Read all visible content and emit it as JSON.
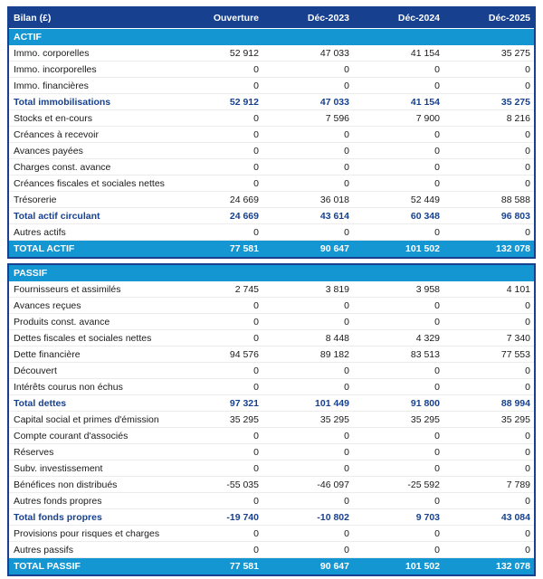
{
  "colors": {
    "navy": "#17418e",
    "section_blue": "#1496d2",
    "row_text": "#1a1a1a",
    "header_text": "#ffffff"
  },
  "table": {
    "title": "Bilan (£)",
    "columns": [
      "Ouverture",
      "Déc-2023",
      "Déc-2024",
      "Déc-2025"
    ],
    "sections": [
      {
        "name": "ACTIF",
        "rows": [
          {
            "label": "Immo. corporelles",
            "values": [
              "52 912",
              "47 033",
              "41 154",
              "35 275"
            ],
            "style": "normal"
          },
          {
            "label": "Immo. incorporelles",
            "values": [
              "0",
              "0",
              "0",
              "0"
            ],
            "style": "normal"
          },
          {
            "label": "Immo. financières",
            "values": [
              "0",
              "0",
              "0",
              "0"
            ],
            "style": "normal"
          },
          {
            "label": "Total immobilisations",
            "values": [
              "52 912",
              "47 033",
              "41 154",
              "35 275"
            ],
            "style": "subtotal"
          },
          {
            "label": "Stocks et en-cours",
            "values": [
              "0",
              "7 596",
              "7 900",
              "8 216"
            ],
            "style": "normal"
          },
          {
            "label": "Créances à recevoir",
            "values": [
              "0",
              "0",
              "0",
              "0"
            ],
            "style": "normal"
          },
          {
            "label": "Avances payées",
            "values": [
              "0",
              "0",
              "0",
              "0"
            ],
            "style": "normal"
          },
          {
            "label": "Charges const. avance",
            "values": [
              "0",
              "0",
              "0",
              "0"
            ],
            "style": "normal"
          },
          {
            "label": "Créances fiscales et sociales nettes",
            "values": [
              "0",
              "0",
              "0",
              "0"
            ],
            "style": "normal"
          },
          {
            "label": "Trésorerie",
            "values": [
              "24 669",
              "36 018",
              "52 449",
              "88 588"
            ],
            "style": "normal"
          },
          {
            "label": "Total actif circulant",
            "values": [
              "24 669",
              "43 614",
              "60 348",
              "96 803"
            ],
            "style": "subtotal"
          },
          {
            "label": "Autres actifs",
            "values": [
              "0",
              "0",
              "0",
              "0"
            ],
            "style": "normal"
          }
        ],
        "total": {
          "label": "TOTAL ACTIF",
          "values": [
            "77 581",
            "90 647",
            "101 502",
            "132 078"
          ]
        }
      },
      {
        "name": "PASSIF",
        "rows": [
          {
            "label": "Fournisseurs et assimilés",
            "values": [
              "2 745",
              "3 819",
              "3 958",
              "4 101"
            ],
            "style": "normal"
          },
          {
            "label": "Avances reçues",
            "values": [
              "0",
              "0",
              "0",
              "0"
            ],
            "style": "normal"
          },
          {
            "label": "Produits const. avance",
            "values": [
              "0",
              "0",
              "0",
              "0"
            ],
            "style": "normal"
          },
          {
            "label": "Dettes fiscales et sociales nettes",
            "values": [
              "0",
              "8 448",
              "4 329",
              "7 340"
            ],
            "style": "normal"
          },
          {
            "label": "Dette financière",
            "values": [
              "94 576",
              "89 182",
              "83 513",
              "77 553"
            ],
            "style": "normal"
          },
          {
            "label": "Découvert",
            "values": [
              "0",
              "0",
              "0",
              "0"
            ],
            "style": "normal"
          },
          {
            "label": "Intérêts courus non échus",
            "values": [
              "0",
              "0",
              "0",
              "0"
            ],
            "style": "normal"
          },
          {
            "label": "Total dettes",
            "values": [
              "97 321",
              "101 449",
              "91 800",
              "88 994"
            ],
            "style": "subtotal"
          },
          {
            "label": "Capital social et primes d'émission",
            "values": [
              "35 295",
              "35 295",
              "35 295",
              "35 295"
            ],
            "style": "normal"
          },
          {
            "label": "Compte courant d'associés",
            "values": [
              "0",
              "0",
              "0",
              "0"
            ],
            "style": "normal"
          },
          {
            "label": "Réserves",
            "values": [
              "0",
              "0",
              "0",
              "0"
            ],
            "style": "normal"
          },
          {
            "label": "Subv. investissement",
            "values": [
              "0",
              "0",
              "0",
              "0"
            ],
            "style": "normal"
          },
          {
            "label": "Bénéfices non distribués",
            "values": [
              "-55 035",
              "-46 097",
              "-25 592",
              "7 789"
            ],
            "style": "normal"
          },
          {
            "label": "Autres fonds propres",
            "values": [
              "0",
              "0",
              "0",
              "0"
            ],
            "style": "normal"
          },
          {
            "label": "Total fonds propres",
            "values": [
              "-19 740",
              "-10 802",
              "9 703",
              "43 084"
            ],
            "style": "subtotal"
          },
          {
            "label": "Provisions pour risques et charges",
            "values": [
              "0",
              "0",
              "0",
              "0"
            ],
            "style": "normal"
          },
          {
            "label": "Autres passifs",
            "values": [
              "0",
              "0",
              "0",
              "0"
            ],
            "style": "normal"
          }
        ],
        "total": {
          "label": "TOTAL PASSIF",
          "values": [
            "77 581",
            "90 647",
            "101 502",
            "132 078"
          ]
        }
      }
    ]
  }
}
